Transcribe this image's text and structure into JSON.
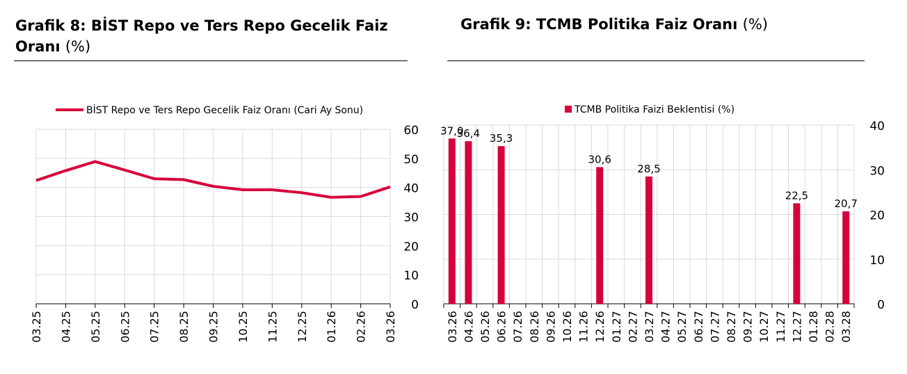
{
  "colors": {
    "series": "#D6003A",
    "grid": "#d9d9d9"
  },
  "chart_data": [
    {
      "type": "line",
      "title": "Grafik 8:  BİST Repo ve Ters Repo Gecelik Faiz Oranı",
      "title_unit": "(%)",
      "legend": "BİST Repo ve Ters Repo Gecelik Faiz Oranı (Cari Ay Sonu)",
      "legend_position": "top",
      "categories": [
        "03.25",
        "04.25",
        "05.25",
        "06.25",
        "07.25",
        "08.25",
        "09.25",
        "10.25",
        "11.25",
        "12.25",
        "01.26",
        "02.26",
        "03.26"
      ],
      "series": [
        {
          "name": "BİST Repo ve Ters Repo Gecelik Faiz Oranı (Cari Ay Sonu)",
          "values": [
            42.4,
            45.8,
            48.9,
            46.0,
            43.0,
            42.7,
            40.4,
            39.2,
            39.2,
            38.2,
            36.6,
            36.9,
            40.2
          ]
        }
      ],
      "ylim": [
        0,
        60
      ],
      "yticks": [
        0,
        10,
        20,
        30,
        40,
        50,
        60
      ],
      "y_axis_side": "right",
      "grid": true
    },
    {
      "type": "bar",
      "title": "Grafik 9: TCMB Politika Faiz Oranı",
      "title_unit": "(%)",
      "legend": "TCMB Politika Faizi Beklentisi (%)",
      "legend_position": "top",
      "categories": [
        "03.26",
        "04.26",
        "05.26",
        "06.26",
        "07.26",
        "08.26",
        "09.26",
        "10.26",
        "11.26",
        "12.26",
        "01.27",
        "02.27",
        "03.27",
        "04.27",
        "05.27",
        "06.27",
        "07.27",
        "08.27",
        "09.27",
        "10.27",
        "11.27",
        "12.27",
        "01.28",
        "02.28",
        "03.28"
      ],
      "series": [
        {
          "name": "TCMB Politika Faizi Beklentisi (%)",
          "values": [
            37.0,
            36.4,
            null,
            35.3,
            null,
            null,
            null,
            null,
            null,
            30.6,
            null,
            null,
            28.5,
            null,
            null,
            null,
            null,
            null,
            null,
            null,
            null,
            22.5,
            null,
            null,
            20.7
          ]
        }
      ],
      "data_labels": [
        "37,0",
        "36,4",
        null,
        "35,3",
        null,
        null,
        null,
        null,
        null,
        "30,6",
        null,
        null,
        "28,5",
        null,
        null,
        null,
        null,
        null,
        null,
        null,
        null,
        "22,5",
        null,
        null,
        "20,7"
      ],
      "ylim": [
        0,
        40
      ],
      "yticks": [
        0,
        10,
        20,
        30,
        40
      ],
      "y_axis_side": "right",
      "grid": true
    }
  ]
}
